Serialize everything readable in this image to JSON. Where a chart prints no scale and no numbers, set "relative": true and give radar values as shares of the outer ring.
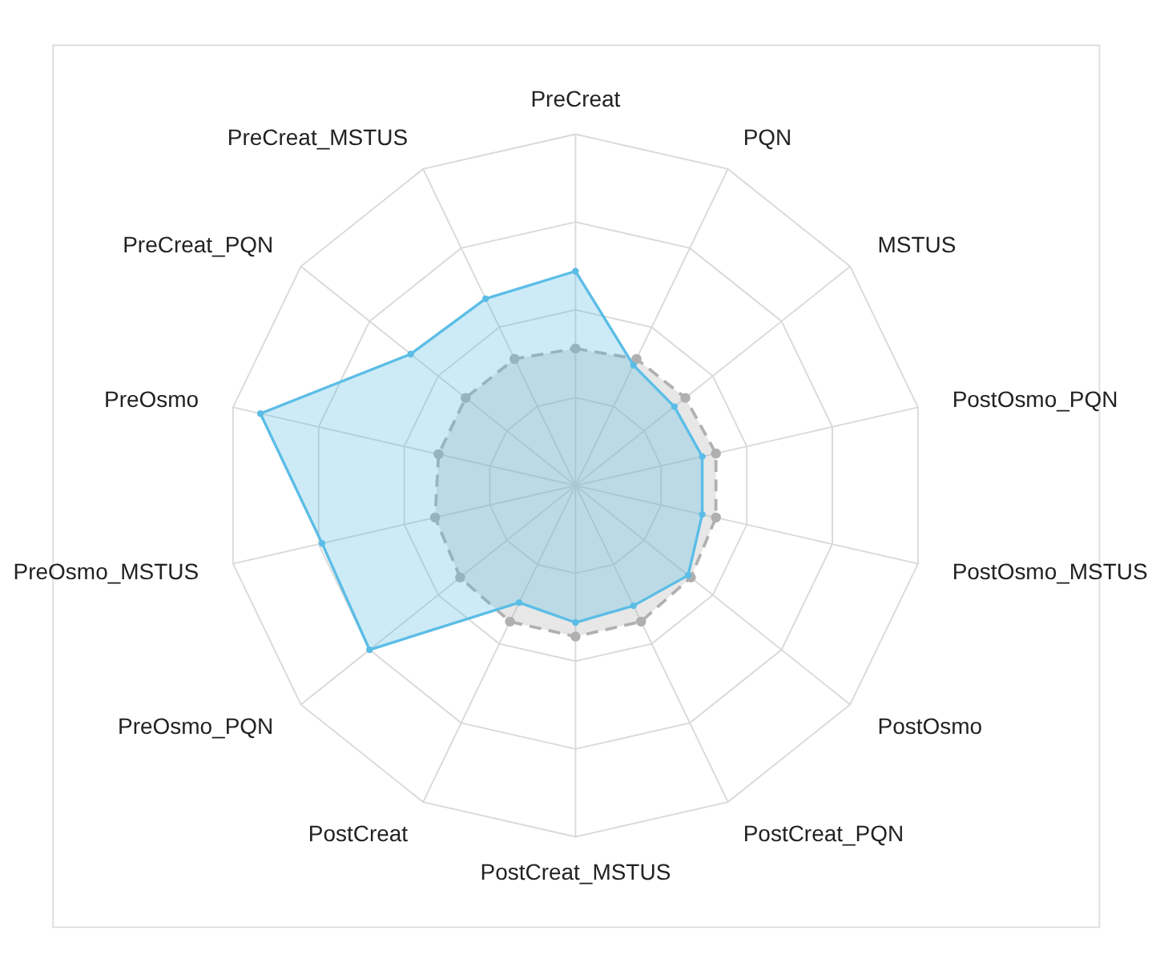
{
  "chart_data": {
    "type": "radar",
    "relative": true,
    "grid": true,
    "marker": "circle",
    "categories": [
      "PreCreat",
      "PQN",
      "MSTUS",
      "PostOsmo_PQN",
      "PostOsmo_MSTUS",
      "PostOsmo",
      "PostCreat_PQN",
      "PostCreat_MSTUS",
      "PostCreat",
      "PreOsmo_PQN",
      "PreOsmo_MSTUS",
      "PreOsmo",
      "PreCreat_PQN",
      "PreCreat_MSTUS"
    ],
    "series": [
      {
        "color": "#b0b0b0",
        "line_style": "dashed",
        "values": [
          0.39,
          0.4,
          0.4,
          0.41,
          0.41,
          0.42,
          0.43,
          0.43,
          0.43,
          0.42,
          0.41,
          0.4,
          0.4,
          0.4
        ]
      },
      {
        "color": "#5bbde6",
        "line_style": "solid",
        "values": [
          0.61,
          0.38,
          0.36,
          0.37,
          0.37,
          0.41,
          0.38,
          0.39,
          0.37,
          0.75,
          0.74,
          0.92,
          0.6,
          0.59
        ]
      }
    ]
  }
}
